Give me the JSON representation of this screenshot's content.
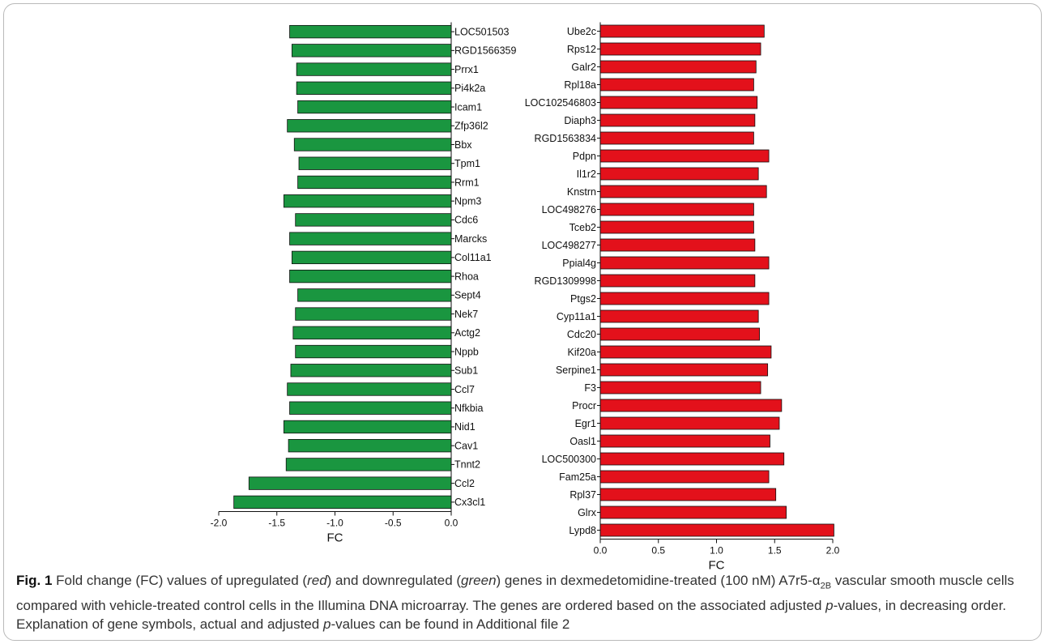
{
  "chart_data": [
    {
      "type": "bar",
      "orientation": "horizontal",
      "xlabel": "FC",
      "xlim": [
        -2.0,
        0.0
      ],
      "xticks": [
        "-2.0",
        "-1.5",
        "-1.0",
        "-0.5",
        "0.0"
      ],
      "color": "#1a9640",
      "categories": [
        "LOC501503",
        "RGD1566359",
        "Prrx1",
        "Pi4k2a",
        "Icam1",
        "Zfp36l2",
        "Bbx",
        "Tpm1",
        "Rrm1",
        "Npm3",
        "Cdc6",
        "Marcks",
        "Col11a1",
        "Rhoa",
        "Sept4",
        "Nek7",
        "Actg2",
        "Nppb",
        "Sub1",
        "Ccl7",
        "Nfkbia",
        "Nid1",
        "Cav1",
        "Tnnt2",
        "Ccl2",
        "Cx3cl1"
      ],
      "values": [
        -1.39,
        -1.37,
        -1.33,
        -1.33,
        -1.32,
        -1.41,
        -1.35,
        -1.31,
        -1.32,
        -1.44,
        -1.34,
        -1.39,
        -1.37,
        -1.39,
        -1.32,
        -1.34,
        -1.36,
        -1.34,
        -1.38,
        -1.41,
        -1.39,
        -1.44,
        -1.4,
        -1.42,
        -1.74,
        -1.87
      ]
    },
    {
      "type": "bar",
      "orientation": "horizontal",
      "xlabel": "FC",
      "xlim": [
        0.0,
        2.0
      ],
      "xticks": [
        "0.0",
        "0.5",
        "1.0",
        "1.5",
        "2.0"
      ],
      "color": "#e3111b",
      "categories": [
        "Ube2c",
        "Rps12",
        "Galr2",
        "Rpl18a",
        "LOC102546803",
        "Diaph3",
        "RGD1563834",
        "Pdpn",
        "Il1r2",
        "Knstrn",
        "LOC498276",
        "Tceb2",
        "LOC498277",
        "Ppial4g",
        "RGD1309998",
        "Ptgs2",
        "Cyp11a1",
        "Cdc20",
        "Kif20a",
        "Serpine1",
        "F3",
        "Procr",
        "Egr1",
        "Oasl1",
        "LOC500300",
        "Fam25a",
        "Rpl37",
        "Glrx",
        "Lypd8"
      ],
      "values": [
        1.41,
        1.38,
        1.34,
        1.32,
        1.35,
        1.33,
        1.32,
        1.45,
        1.36,
        1.43,
        1.32,
        1.32,
        1.33,
        1.45,
        1.33,
        1.45,
        1.36,
        1.37,
        1.47,
        1.44,
        1.38,
        1.56,
        1.54,
        1.46,
        1.58,
        1.45,
        1.51,
        1.6,
        2.01
      ]
    }
  ],
  "caption": {
    "fig_label": "Fig. 1",
    "t1": " Fold change (FC) values of upregulated (",
    "red_word": "red",
    "t2": ") and downregulated (",
    "green_word": "green",
    "t3": ") genes in dexmedetomidine-treated (100 nM) A7r5-α",
    "sub": "2B",
    "t4": " vascular smooth muscle cells compared with vehicle-treated control cells in the Illumina DNA microarray. The genes are ordered based on the associated adjusted ",
    "p_word": "p",
    "t5": "-values, in decreasing order. Explanation of gene symbols, actual and adjusted ",
    "p_word2": "p",
    "t6": "-values can be found in Additional file 2"
  }
}
